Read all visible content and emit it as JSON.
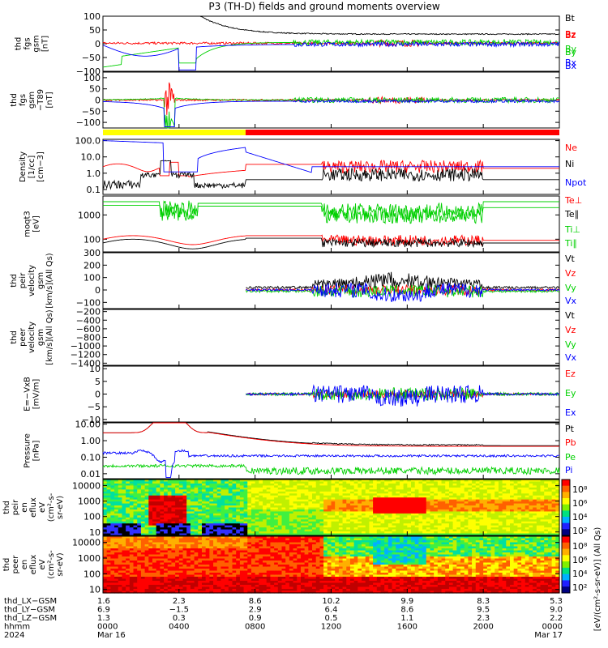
{
  "title": "P3 (TH-D) fields and ground moments overview",
  "colors": {
    "black": "#000000",
    "red": "#ff0000",
    "green": "#00d000",
    "blue": "#0000ff",
    "yellow": "#ffff00"
  },
  "chart_data": [
    {
      "id": "fgs-gsm",
      "type": "line",
      "ylabel": [
        "thd",
        "fgs",
        "gsm",
        "[nT]"
      ],
      "ylim": [
        -100,
        100
      ],
      "ytick_labels": [
        "100",
        "50",
        "0",
        "−50",
        "−100"
      ],
      "yticks": [
        100,
        50,
        0,
        -50,
        -100
      ],
      "legend_placement": "right",
      "series": [
        {
          "name": "Bt",
          "color": "black"
        },
        {
          "name": "Bz",
          "color": "red"
        },
        {
          "name": "By",
          "color": "green"
        },
        {
          "name": "Bx",
          "color": "blue"
        }
      ]
    },
    {
      "id": "fgs-gsm-t89",
      "type": "line",
      "ylabel": [
        "thd",
        "fgs",
        "gsm",
        "−T89",
        "[nT]"
      ],
      "ylim": [
        -125,
        125
      ],
      "ytick_labels": [
        "100",
        "50",
        "0",
        "−50",
        "−100"
      ],
      "yticks": [
        100,
        50,
        0,
        -50,
        -100
      ],
      "legend_placement": "right",
      "series": [
        {
          "name": "Bz",
          "color": "red"
        },
        {
          "name": "By",
          "color": "green"
        },
        {
          "name": "Bx",
          "color": "blue"
        }
      ]
    },
    {
      "id": "density",
      "type": "line",
      "log": true,
      "ylabel": [
        "Density",
        "[1/cc]",
        "[cm−3]"
      ],
      "ylim": [
        0.05,
        120
      ],
      "ytick_labels": [
        "100.0",
        "10.0",
        "1.0",
        "0.1"
      ],
      "yticks": [
        100,
        10,
        1,
        0.1
      ],
      "legend_placement": "right",
      "series": [
        {
          "name": "Ne",
          "color": "red"
        },
        {
          "name": "Ni",
          "color": "black"
        },
        {
          "name": "Npot",
          "color": "blue"
        }
      ]
    },
    {
      "id": "temperature",
      "type": "line",
      "log": true,
      "ylabel": [
        "moqt3",
        "[eV]"
      ],
      "ylim": [
        30,
        6000
      ],
      "ytick_labels": [
        "1000",
        "100"
      ],
      "yticks": [
        1000,
        100
      ],
      "legend_placement": "right",
      "series": [
        {
          "name": "Te⊥",
          "color": "red"
        },
        {
          "name": "Te∥",
          "color": "black"
        },
        {
          "name": "Ti⊥",
          "color": "green"
        },
        {
          "name": "Ti∥",
          "color": "green"
        }
      ]
    },
    {
      "id": "peir-velocity",
      "type": "line",
      "ylabel": [
        "thd",
        "peir",
        "velocity",
        "gsm",
        "[km/s](All Qs)"
      ],
      "ylim": [
        -150,
        300
      ],
      "ytick_labels": [
        "300",
        "200",
        "100",
        "0",
        "−100"
      ],
      "yticks": [
        300,
        200,
        100,
        0,
        -100
      ],
      "legend_placement": "right",
      "series": [
        {
          "name": "Vt",
          "color": "black"
        },
        {
          "name": "Vz",
          "color": "red"
        },
        {
          "name": "Vy",
          "color": "green"
        },
        {
          "name": "Vx",
          "color": "blue"
        }
      ]
    },
    {
      "id": "peer-velocity",
      "type": "line",
      "ylabel": [
        "thd",
        "peer",
        "velocity",
        "gsm",
        "[km/s](All Qs)"
      ],
      "ylim": [
        -1450,
        -150
      ],
      "ytick_labels": [
        "−200",
        "−400",
        "−600",
        "−800",
        "−1000",
        "−1200",
        "−1400"
      ],
      "yticks": [
        -200,
        -400,
        -600,
        -800,
        -1000,
        -1200,
        -1400
      ],
      "legend_placement": "right",
      "series": [
        {
          "name": "Vt",
          "color": "black"
        },
        {
          "name": "Vz",
          "color": "red"
        },
        {
          "name": "Vy",
          "color": "green"
        },
        {
          "name": "Vx",
          "color": "blue"
        }
      ]
    },
    {
      "id": "efield",
      "type": "line",
      "ylabel": [
        "E=−VxB",
        "[mV/m]"
      ],
      "ylim": [
        -11,
        11
      ],
      "ytick_labels": [
        "10",
        "5",
        "0",
        "−5",
        "−10"
      ],
      "yticks": [
        10,
        5,
        0,
        -5,
        -10
      ],
      "legend_placement": "right",
      "series": [
        {
          "name": "Ez",
          "color": "red"
        },
        {
          "name": "Ey",
          "color": "green"
        },
        {
          "name": "Ex",
          "color": "blue"
        }
      ]
    },
    {
      "id": "pressure",
      "type": "line",
      "log": true,
      "ylabel": [
        "Pressure",
        "[nPa]"
      ],
      "ylim": [
        0.005,
        12
      ],
      "ytick_labels": [
        "10.00",
        "1.00",
        "0.10",
        "0.01"
      ],
      "yticks": [
        10,
        1,
        0.1,
        0.01
      ],
      "legend_placement": "right",
      "series": [
        {
          "name": "Pt",
          "color": "black"
        },
        {
          "name": "Pb",
          "color": "red"
        },
        {
          "name": "Pe",
          "color": "green"
        },
        {
          "name": "Pi",
          "color": "blue"
        }
      ]
    },
    {
      "id": "peir-eflux",
      "type": "heatmap",
      "log": true,
      "ylabel": [
        "thd",
        "peir",
        "en",
        "eflux",
        "eV",
        "(cm²-s-",
        "sr-eV)"
      ],
      "ylim": [
        6,
        25000
      ],
      "ytick_labels": [
        "10000",
        "1000",
        "100",
        "10"
      ],
      "yticks": [
        10000,
        1000,
        100,
        10
      ]
    },
    {
      "id": "peer-eflux",
      "type": "heatmap",
      "log": true,
      "ylabel": [
        "thd",
        "peer",
        "en",
        "eflux",
        "eV",
        "(cm²-s-",
        "sr-eV)"
      ],
      "ylim": [
        6,
        25000
      ],
      "ytick_labels": [
        "10000",
        "1000",
        "100",
        "10"
      ],
      "yticks": [
        10000,
        1000,
        100,
        10
      ]
    }
  ],
  "colorbars": [
    {
      "ticks": [
        "10⁸",
        "10⁶",
        "10⁴",
        "10²"
      ]
    },
    {
      "ticks": [
        "10⁸",
        "10⁶",
        "10⁴",
        "10²"
      ]
    }
  ],
  "colorbar_label": "[eV/(cm²-s-sr-eV)] (All Qs)",
  "ephemeris": {
    "rows": [
      {
        "label": "thd_LX−GSM",
        "values": [
          "1.6",
          "2.3",
          "8.6",
          "10.2",
          "9.9",
          "8.3",
          "5.3"
        ]
      },
      {
        "label": "thd_LY−GSM",
        "values": [
          "6.9",
          "−1.5",
          "2.9",
          "6.4",
          "8.6",
          "9.5",
          "9.0"
        ]
      },
      {
        "label": "thd_LZ−GSM",
        "values": [
          "1.3",
          "0.3",
          "0.9",
          "0.5",
          "1.1",
          "2.3",
          "2.2"
        ]
      },
      {
        "label": "hhmm",
        "values": [
          "0000",
          "0400",
          "0800",
          "1200",
          "1600",
          "2000",
          "0000"
        ]
      },
      {
        "label": "2024",
        "values": [
          "Mar 16",
          "",
          "",
          "",
          "",
          "",
          "Mar 17"
        ]
      }
    ]
  },
  "time_axis": {
    "xlim_hours": [
      0,
      24
    ],
    "tick_hours": [
      0,
      4,
      8,
      12,
      16,
      20,
      24
    ]
  },
  "mode_bar": {
    "segments": [
      {
        "from_h": 0,
        "to_h": 7.5,
        "color": "yellow"
      },
      {
        "from_h": 7.5,
        "to_h": 24,
        "color": "red"
      }
    ]
  }
}
